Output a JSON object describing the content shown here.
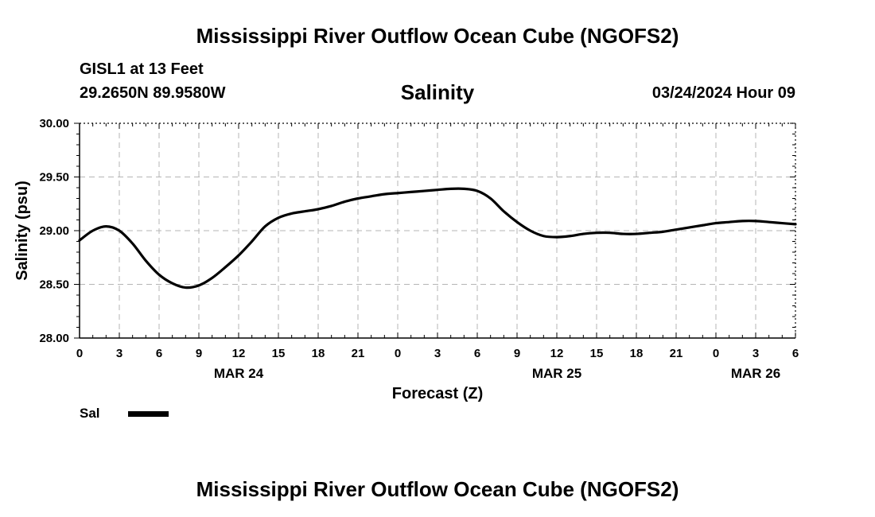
{
  "header": {
    "title": "Mississippi River Outflow Ocean Cube (NGOFS2)",
    "station": "GISL1 at 13 Feet",
    "coordinates": "29.2650N  89.9580W",
    "datetime": "03/24/2024 Hour 09"
  },
  "footer": {
    "title": "Mississippi River Outflow Ocean Cube (NGOFS2)"
  },
  "legend": {
    "label": "Sal",
    "color": "#000000"
  },
  "chart_data": {
    "type": "line",
    "title": "Salinity",
    "xlabel": "Forecast (Z)",
    "ylabel": "Salinity (psu)",
    "xlim": [
      0,
      54
    ],
    "ylim": [
      28.0,
      30.0
    ],
    "grid": true,
    "x_ticks": [
      0,
      3,
      6,
      9,
      12,
      15,
      18,
      21,
      24,
      27,
      30,
      33,
      36,
      39,
      42,
      45,
      48,
      51,
      54
    ],
    "x_tick_labels": [
      "0",
      "3",
      "6",
      "9",
      "12",
      "15",
      "18",
      "21",
      "0",
      "3",
      "6",
      "9",
      "12",
      "15",
      "18",
      "21",
      "0",
      "3",
      "6"
    ],
    "y_ticks": [
      28.0,
      28.5,
      29.0,
      29.5,
      30.0
    ],
    "y_tick_labels": [
      "28.00",
      "28.50",
      "29.00",
      "29.50",
      "30.00"
    ],
    "date_labels": [
      {
        "x": 12,
        "label": "MAR 24"
      },
      {
        "x": 36,
        "label": "MAR 25"
      },
      {
        "x": 51,
        "label": "MAR 26"
      }
    ],
    "series": [
      {
        "name": "Sal",
        "x": [
          0,
          1,
          2,
          3,
          4,
          5,
          6,
          7,
          8,
          9,
          10,
          11,
          12,
          13,
          14,
          15,
          16,
          17,
          18,
          19,
          20,
          21,
          22,
          23,
          24,
          25,
          26,
          27,
          28,
          29,
          30,
          31,
          32,
          33,
          34,
          35,
          36,
          37,
          38,
          39,
          40,
          41,
          42,
          43,
          44,
          45,
          46,
          47,
          48,
          49,
          50,
          51,
          52,
          53,
          54
        ],
        "values": [
          28.91,
          29.0,
          29.04,
          29.0,
          28.88,
          28.72,
          28.59,
          28.51,
          28.47,
          28.49,
          28.56,
          28.66,
          28.77,
          28.9,
          29.04,
          29.12,
          29.16,
          29.18,
          29.2,
          29.23,
          29.27,
          29.3,
          29.32,
          29.34,
          29.35,
          29.36,
          29.37,
          29.38,
          29.39,
          29.39,
          29.37,
          29.3,
          29.18,
          29.08,
          29.0,
          28.95,
          28.94,
          28.95,
          28.97,
          28.98,
          28.98,
          28.97,
          28.97,
          28.98,
          28.99,
          29.01,
          29.03,
          29.05,
          29.07,
          29.08,
          29.09,
          29.09,
          29.08,
          29.07,
          29.06
        ]
      }
    ]
  }
}
